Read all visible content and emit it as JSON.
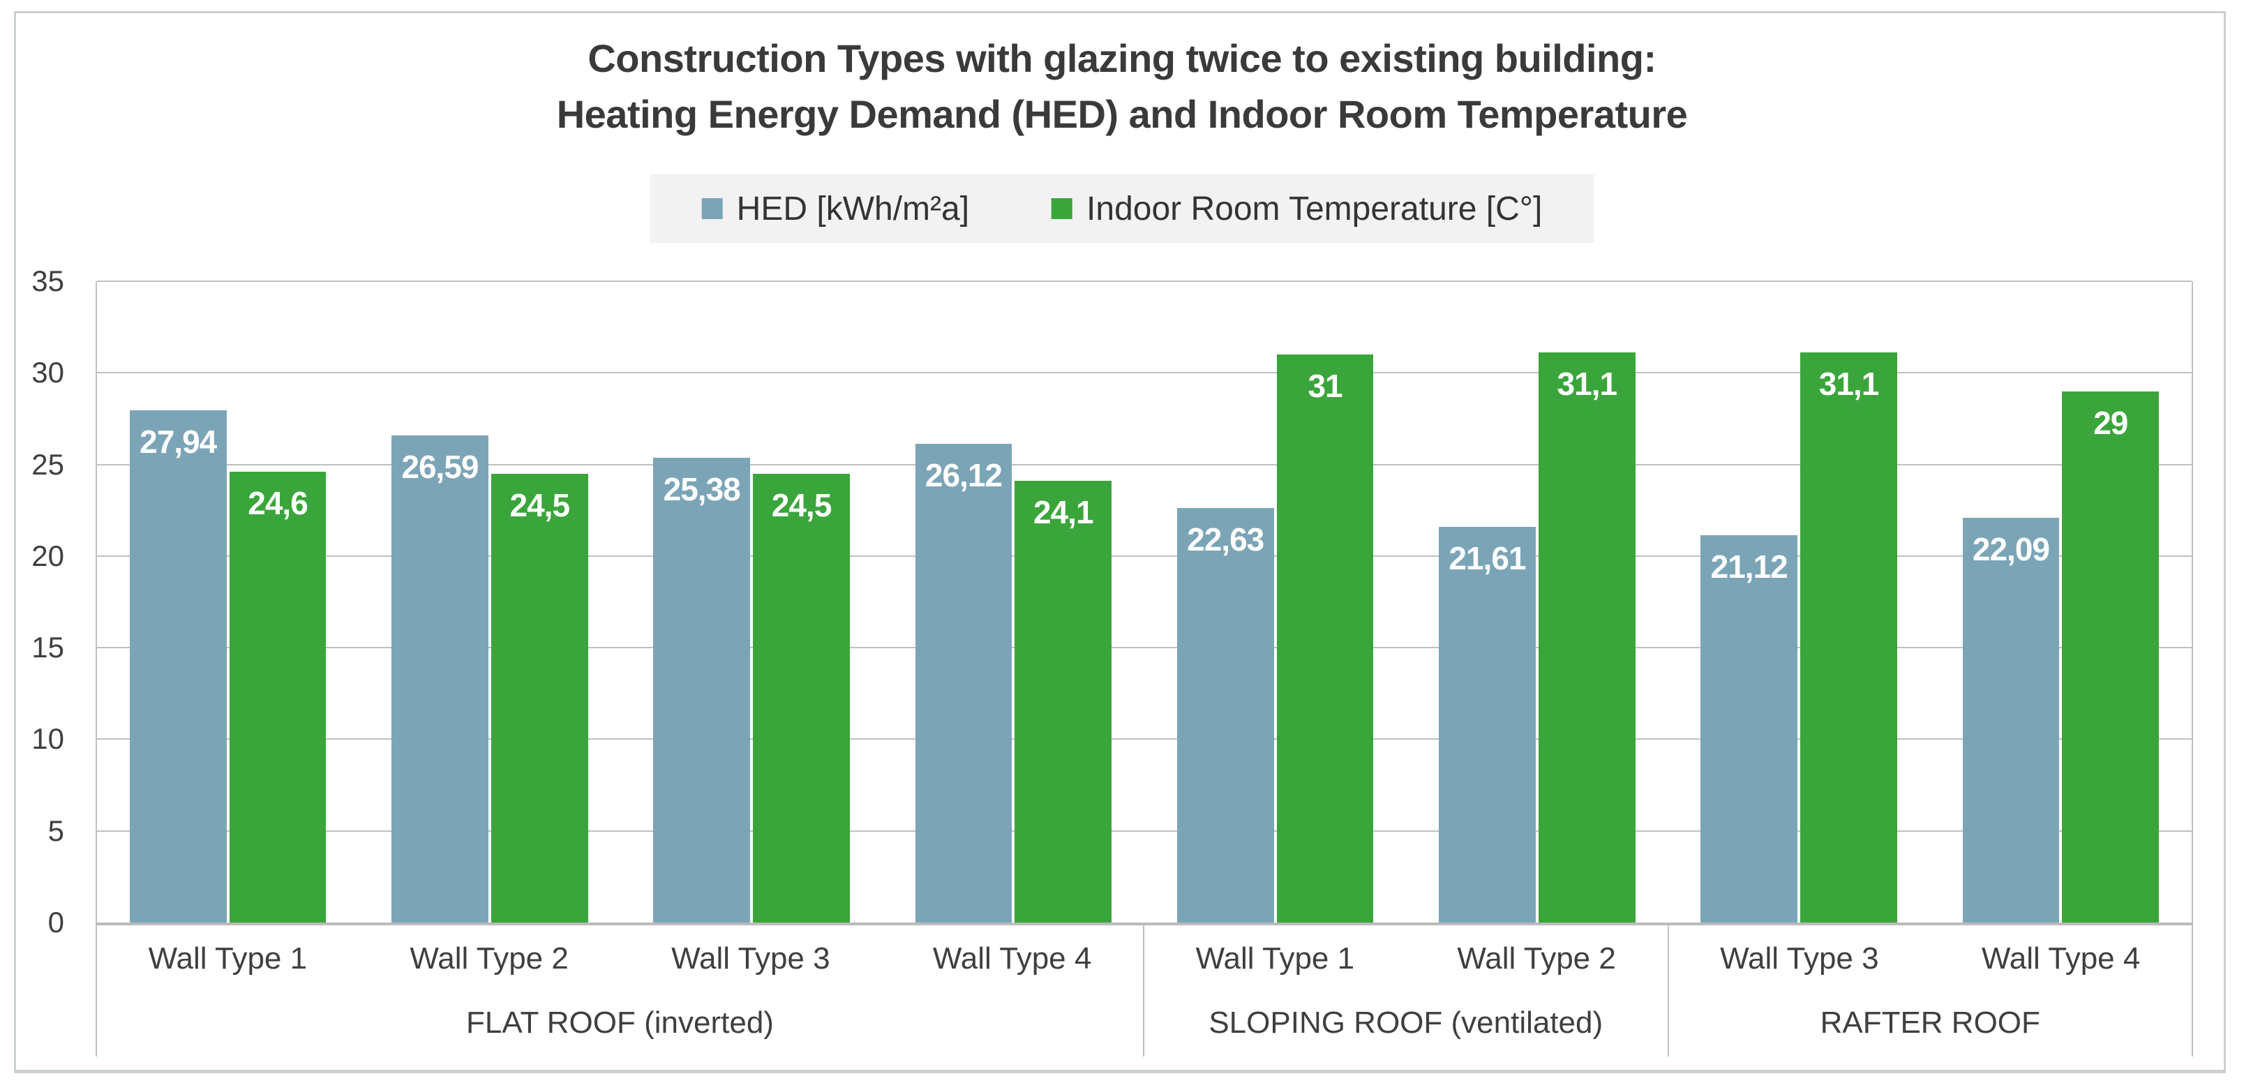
{
  "title": {
    "line1": "Construction Types with glazing twice to existing building:",
    "line2": "Heating Energy Demand (HED) and Indoor Room Temperature"
  },
  "colors": {
    "hed_blue": "#7BA5B7",
    "temp_green": "#3AA53A",
    "gridline_gray": "#C0C0C0",
    "legend_background": "#F2F2F2",
    "text_dark": "#3A3A3A"
  },
  "chart_data": {
    "type": "bar",
    "title": "Construction Types with glazing twice to existing building: Heating Energy Demand (HED) and Indoor Room Temperature",
    "xlabel": "",
    "ylabel": "",
    "ylim": [
      0,
      35
    ],
    "yticks": [
      0,
      5,
      10,
      15,
      20,
      25,
      30,
      35
    ],
    "grid": "horizontal-major",
    "legend_position": "top-center",
    "legend": [
      {
        "name": "HED [kWh/m²a]",
        "color": "#7BA5B7"
      },
      {
        "name": "Indoor Room Temperature [C°]",
        "color": "#3AA53A"
      }
    ],
    "categories": [
      "Wall Type 1",
      "Wall Type 2",
      "Wall Type 3",
      "Wall Type 4",
      "Wall Type 1",
      "Wall Type 2",
      "Wall Type 3",
      "Wall Type 4"
    ],
    "series": [
      {
        "name": "HED [kWh/m²a]",
        "values": [
          27.94,
          26.59,
          25.38,
          26.12,
          22.63,
          21.61,
          21.12,
          22.09
        ]
      },
      {
        "name": "Indoor Room Temperature [C°]",
        "values": [
          24.6,
          24.5,
          24.5,
          24.1,
          31,
          31.1,
          31.1,
          29
        ]
      }
    ],
    "groups": [
      {
        "label": "FLAT ROOF (inverted)",
        "categories": [
          "Wall Type 1",
          "Wall Type 2",
          "Wall Type 3",
          "Wall Type 4"
        ],
        "hed_values": [
          27.94,
          26.59,
          25.38,
          26.12
        ],
        "hed_labels": [
          "27,94",
          "26,59",
          "25,38",
          "26,12"
        ],
        "temp_values": [
          24.6,
          24.5,
          24.5,
          24.1
        ],
        "temp_labels": [
          "24,6",
          "24,5",
          "24,5",
          "24,1"
        ]
      },
      {
        "label": "SLOPING ROOF (ventilated)",
        "categories": [
          "Wall Type 1",
          "Wall Type 2"
        ],
        "hed_values": [
          22.63,
          21.61
        ],
        "hed_labels": [
          "22,63",
          "21,61"
        ],
        "temp_values": [
          31,
          31.1
        ],
        "temp_labels": [
          "31",
          "31,1"
        ]
      },
      {
        "label": "RAFTER ROOF",
        "categories": [
          "Wall Type 3",
          "Wall Type 4"
        ],
        "hed_values": [
          21.12,
          22.09
        ],
        "hed_labels": [
          "21,12",
          "22,09"
        ],
        "temp_values": [
          31.1,
          29
        ],
        "temp_labels": [
          "31,1",
          "29"
        ]
      }
    ]
  }
}
